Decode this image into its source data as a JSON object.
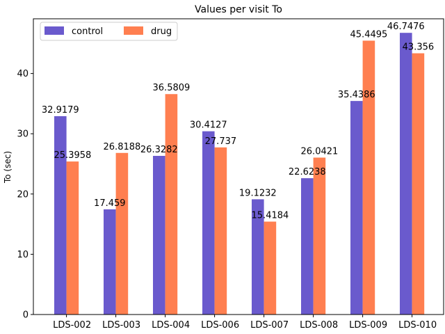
{
  "chart_data": {
    "type": "bar",
    "title": "Values per visit To",
    "xlabel": "",
    "ylabel": "To (sec)",
    "categories": [
      "LDS-002",
      "LDS-003",
      "LDS-004",
      "LDS-006",
      "LDS-007",
      "LDS-008",
      "LDS-009",
      "LDS-010"
    ],
    "series": [
      {
        "name": "control",
        "color": "#6a5acd",
        "values": [
          32.9179,
          17.459,
          26.3282,
          30.4127,
          19.1232,
          22.6238,
          35.4386,
          46.7476
        ],
        "labels": [
          "32.9179",
          "17.459",
          "26.3282",
          "30.4127",
          "19.1232",
          "22.6238",
          "35.4386",
          "46.7476"
        ]
      },
      {
        "name": "drug",
        "color": "#ff7f50",
        "values": [
          25.3958,
          26.8188,
          36.5809,
          27.737,
          15.4184,
          26.0421,
          45.4495,
          43.356
        ],
        "labels": [
          "25.3958",
          "26.8188",
          "36.5809",
          "27.737",
          "15.4184",
          "26.0421",
          "45.4495",
          "43.356"
        ]
      }
    ],
    "ylim": [
      0,
      49.08
    ],
    "yticks": [
      0,
      10,
      20,
      30,
      40
    ],
    "ytick_labels": [
      "0",
      "10",
      "20",
      "30",
      "40"
    ],
    "grid": false,
    "legend_position": "top-left",
    "legend_columns": 2
  }
}
